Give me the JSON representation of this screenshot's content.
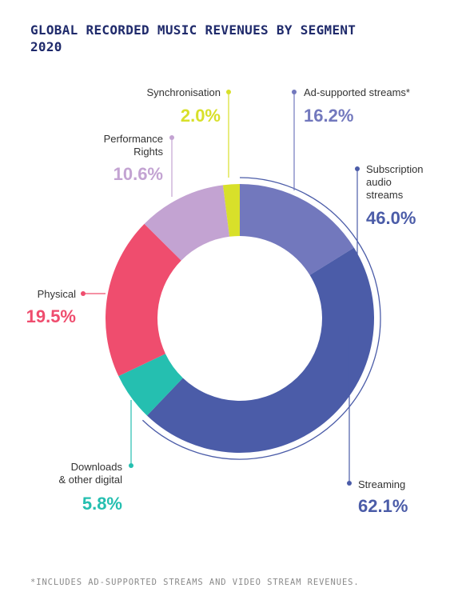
{
  "title_line1": "GLOBAL RECORDED MUSIC REVENUES BY SEGMENT",
  "title_line2": "2020",
  "footnote": "*INCLUDES AD-SUPPORTED STREAMS AND VIDEO STREAM REVENUES.",
  "chart_data": {
    "type": "pie",
    "variant": "donut",
    "title": "GLOBAL RECORDED MUSIC REVENUES BY SEGMENT 2020",
    "slices": [
      {
        "label": "Ad-supported streams*",
        "value": 16.2,
        "display": "16.2%",
        "color": "#7278bd"
      },
      {
        "label": "Subscription audio streams",
        "value": 46.0,
        "display": "46.0%",
        "color": "#4b5ca8"
      },
      {
        "label": "Downloads & other digital",
        "value": 5.8,
        "display": "5.8%",
        "color": "#25bfb0"
      },
      {
        "label": "Physical",
        "value": 19.5,
        "display": "19.5%",
        "color": "#ef4d6e"
      },
      {
        "label": "Performance Rights",
        "value": 10.6,
        "display": "10.6%",
        "color": "#c3a3d2"
      },
      {
        "label": "Synchronisation",
        "value": 2.0,
        "display": "2.0%",
        "color": "#d8e02a"
      }
    ],
    "groups": [
      {
        "label": "Streaming",
        "value": 62.1,
        "display": "62.1%",
        "color": "#4b5ca8",
        "members": [
          "Ad-supported streams*",
          "Subscription audio streams"
        ]
      }
    ]
  }
}
